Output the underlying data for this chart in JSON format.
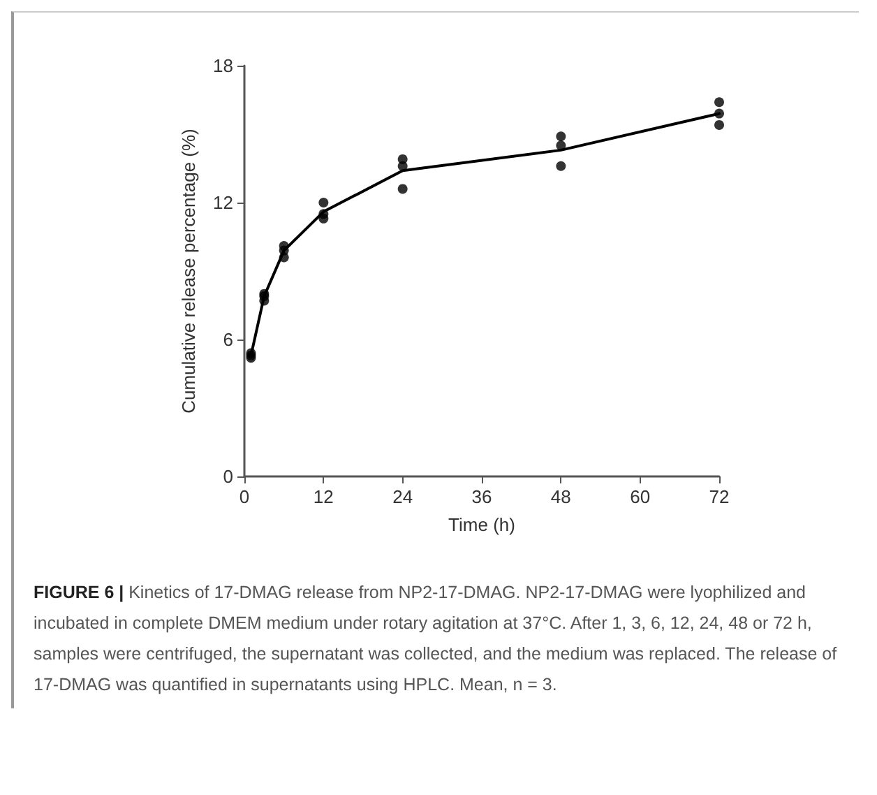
{
  "chart_data": {
    "type": "line",
    "xlabel": "Time (h)",
    "ylabel": "Cumulative release percentage (%)",
    "xlim": [
      0,
      72
    ],
    "xticks": [
      0,
      12,
      24,
      36,
      48,
      60,
      72
    ],
    "ylim": [
      0,
      18
    ],
    "yticks": [
      0,
      6,
      12,
      18
    ],
    "grid": false,
    "series": [
      {
        "color": "#000000",
        "marker": "none",
        "x": [
          1,
          3,
          6,
          12,
          24,
          48,
          72
        ],
        "values": [
          5.3,
          7.9,
          9.9,
          11.6,
          13.4,
          14.3,
          15.9
        ]
      },
      {
        "type": "scatter",
        "color": "#000000",
        "marker": "circle",
        "x": [
          1,
          1,
          1,
          3,
          3,
          3,
          6,
          6,
          6,
          12,
          12,
          12,
          24,
          24,
          24,
          48,
          48,
          48,
          72,
          72,
          72
        ],
        "values": [
          5.2,
          5.3,
          5.4,
          7.7,
          7.9,
          8.0,
          9.6,
          9.9,
          10.1,
          11.3,
          11.5,
          12.0,
          12.6,
          13.6,
          13.9,
          13.6,
          14.5,
          14.9,
          15.4,
          15.9,
          16.4
        ]
      }
    ],
    "annotations": [
      "FIGURE 6 |",
      "Kinetics of 17-DMAG release from NP2-17-DMAG. NP2-17-DMAG were lyophilized and incubated in complete DMEM medium under rotary agitation at 37°C. After 1, 3, 6, 12, 24, 48 or 72 h, samples were centrifuged, the supernatant was collected, and the medium was replaced. The release of 17-DMAG was quantified in supernatants using HPLC. Mean, n = 3."
    ]
  }
}
